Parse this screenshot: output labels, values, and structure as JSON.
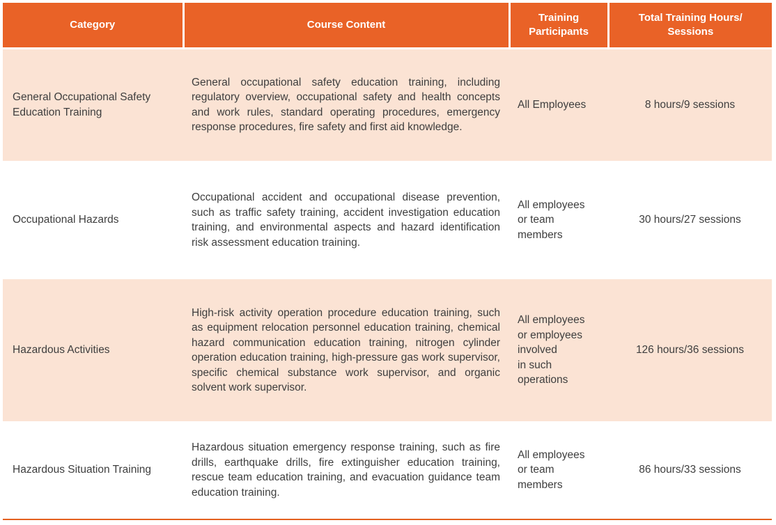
{
  "table": {
    "header": {
      "category": "Category",
      "content": "Course Content",
      "participants": "Training Participants",
      "hours": "Total Training Hours/\nSessions"
    },
    "rows": [
      {
        "category": "General Occupational Safety Education Training",
        "content": "General occupational safety education training, including regulatory overview, occupational safety and health concepts and work rules, standard operating procedures, emergency response procedures, fire safety and first aid knowledge.",
        "participants": "All Employees",
        "hours": "8 hours/9 sessions"
      },
      {
        "category": "Occupational Hazards",
        "content": "Occupational accident and occupational disease prevention, such as traffic safety training, accident investigation education training, and environmental aspects and hazard identification risk assessment education training.",
        "participants": "All employees\nor team\nmembers",
        "hours": "30 hours/27 sessions"
      },
      {
        "category": "Hazardous Activities",
        "content": "High-risk activity operation procedure education training, such as equipment relocation personnel education training, chemical hazard communication education training, nitrogen cylinder operation education training, high-pressure gas work supervisor, specific chemical substance work supervisor, and organic solvent work supervisor.",
        "participants": "All employees\nor employees\ninvolved\nin such\noperations",
        "hours": "126 hours/36 sessions"
      },
      {
        "category": "Hazardous Situation Training",
        "content": "Hazardous situation emergency response training, such as fire drills, earthquake drills, fire extinguisher education training, rescue team education training, and evacuation guidance team education training.",
        "participants": "All employees\nor team\nmembers",
        "hours": "86 hours/33 sessions"
      }
    ]
  },
  "colors": {
    "header_bg": "#E96227",
    "header_text": "#FFFFFF",
    "row_alt_bg": "#FBE3D4",
    "row_bg": "#FFFFFF",
    "body_text": "#3E3E3E",
    "bottom_rule": "#E4601F",
    "divider": "#FFFFFF"
  }
}
